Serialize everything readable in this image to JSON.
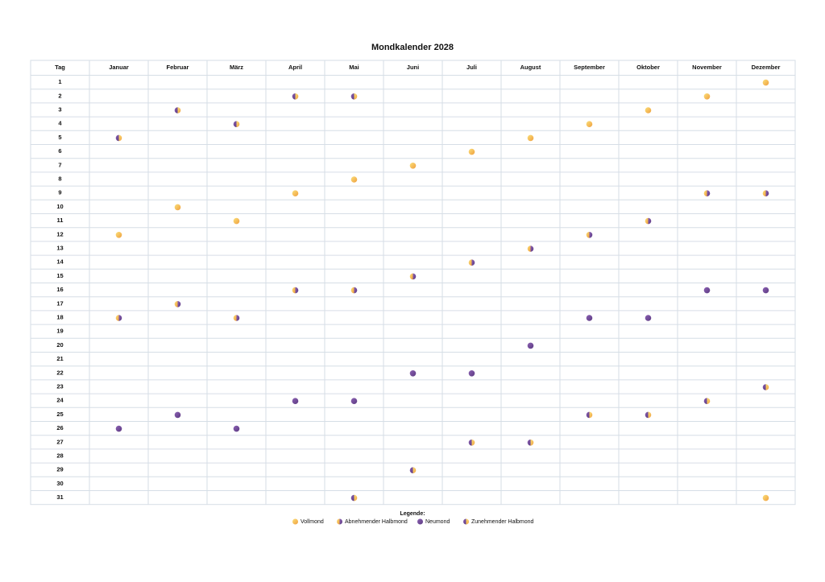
{
  "title": "Mondkalender 2028",
  "columns": [
    "Tag",
    "Januar",
    "Februar",
    "März",
    "April",
    "Mai",
    "Juni",
    "Juli",
    "August",
    "September",
    "Oktober",
    "November",
    "Dezember"
  ],
  "days": [
    1,
    2,
    3,
    4,
    5,
    6,
    7,
    8,
    9,
    10,
    11,
    12,
    13,
    14,
    15,
    16,
    17,
    18,
    19,
    20,
    21,
    22,
    23,
    24,
    25,
    26,
    27,
    28,
    29,
    30,
    31
  ],
  "legend_title": "Legende:",
  "legend": [
    {
      "label": "Vollmond",
      "days": [
        [
          12
        ],
        [
          10
        ],
        [
          11
        ],
        [
          9
        ],
        [
          8
        ],
        [
          7
        ],
        [
          6
        ],
        [
          5
        ],
        [
          4
        ],
        [
          3
        ],
        [
          2
        ],
        [
          1,
          31
        ]
      ]
    },
    {
      "label": "Abnehmender Halbmond",
      "days": [
        [
          18
        ],
        [
          17
        ],
        [
          18
        ],
        [
          16
        ],
        [
          16
        ],
        [
          15
        ],
        [
          14
        ],
        [
          13
        ],
        [
          12
        ],
        [
          11
        ],
        [
          9
        ],
        [
          9
        ]
      ]
    },
    {
      "label": "Neumond",
      "days": [
        [
          26
        ],
        [
          25
        ],
        [
          26
        ],
        [
          24
        ],
        [
          24
        ],
        [
          22
        ],
        [
          22
        ],
        [
          20
        ],
        [
          18
        ],
        [
          18
        ],
        [
          16
        ],
        [
          16
        ]
      ]
    },
    {
      "label": "Zunehmender Halbmond",
      "days": [
        [
          5
        ],
        [
          3
        ],
        [
          4
        ],
        [
          2
        ],
        [
          2,
          31
        ],
        [
          29
        ],
        [
          27
        ],
        [
          27
        ],
        [
          25
        ],
        [
          25
        ],
        [
          24
        ],
        [
          23
        ]
      ]
    }
  ]
}
